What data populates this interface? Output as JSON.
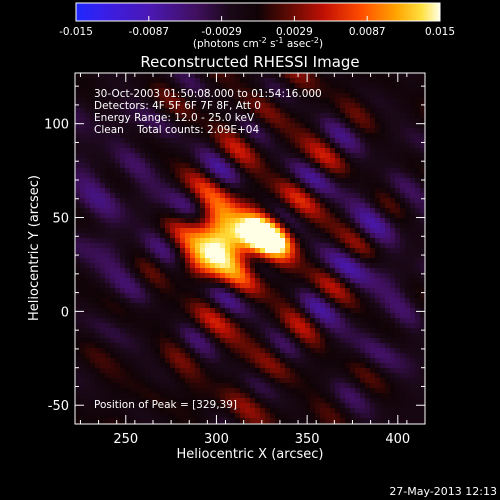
{
  "chart_data": {
    "type": "heatmap",
    "title": "Reconstructed RHESSI Image",
    "xlabel": "Heliocentric X (arcsec)",
    "ylabel": "Heliocentric Y (arcsec)",
    "xlim": [
      222,
      415
    ],
    "ylim": [
      -60,
      127
    ],
    "x_ticks": [
      250,
      300,
      350,
      400
    ],
    "y_ticks": [
      -50,
      0,
      50,
      100
    ],
    "grid": false,
    "annotations": [
      "30-Oct-2003 01:50:08.000 to 01:54:16.000",
      "Detectors: 4F 5F 6F 7F 8F, Att 0",
      "Energy Range: 12.0 - 25.0 keV",
      "Clean    Total counts: 2.09E+04"
    ],
    "peak_label": "Position of Peak = [329,39]",
    "peak": {
      "x": 329,
      "y": 39
    },
    "colorbar": {
      "ticks": [
        "-0.015",
        "-0.0087",
        "-0.0029",
        "0.0029",
        "0.0087",
        "0.015"
      ],
      "range": [
        -0.015,
        0.015
      ],
      "label": "(photons cm-2 s-1 asec-2)"
    },
    "sources": [
      {
        "x": 326,
        "y": 39,
        "sx": 12,
        "sy": 9,
        "amp": 0.015
      },
      {
        "x": 305,
        "y": 37,
        "sx": 14,
        "sy": 10,
        "amp": 0.011
      },
      {
        "x": 300,
        "y": 50,
        "sx": 9,
        "sy": 8,
        "amp": 0.007
      },
      {
        "x": 292,
        "y": 25,
        "sx": 10,
        "sy": 8,
        "amp": 0.006
      }
    ],
    "colors": {
      "background": "#000000",
      "frame": "#ffffff",
      "negative": "#2233ff",
      "positive_peak": "#ffffe0"
    }
  },
  "footer": {
    "timestamp": "27-May-2013 12:13"
  }
}
